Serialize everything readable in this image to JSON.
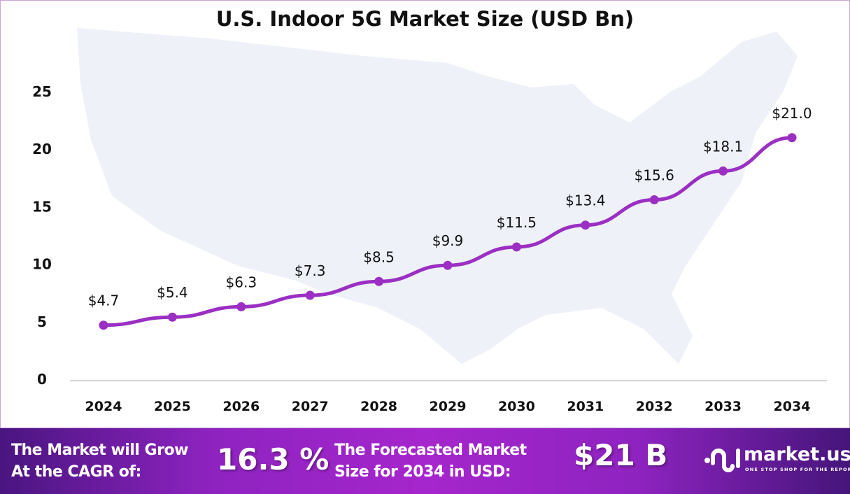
{
  "chart_data": {
    "type": "line",
    "title": "U.S. Indoor 5G Market Size (USD Bn)",
    "xlabel": "",
    "ylabel": "",
    "categories": [
      "2024",
      "2025",
      "2026",
      "2027",
      "2028",
      "2029",
      "2030",
      "2031",
      "2032",
      "2033",
      "2034"
    ],
    "values": [
      4.7,
      5.4,
      6.3,
      7.3,
      8.5,
      9.9,
      11.5,
      13.4,
      15.6,
      18.1,
      21.0
    ],
    "data_labels": [
      "$4.7",
      "$5.4",
      "$6.3",
      "$7.3",
      "$8.5",
      "$9.9",
      "$11.5",
      "$13.4",
      "$15.6",
      "$18.1",
      "$21.0"
    ],
    "yticks": [
      "0",
      "5",
      "10",
      "15",
      "20",
      "25"
    ],
    "ylim": [
      0,
      25
    ],
    "grid": false,
    "legend": "none",
    "line_color": "#9b2fc3",
    "background": "map of the United States"
  },
  "banner": {
    "cagr_label_line1": "The Market will Grow",
    "cagr_label_line2": "At the CAGR of:",
    "cagr_value": "16.3 %",
    "forecast_label_line1": "The Forecasted Market",
    "forecast_label_line2": "Size for 2034 in USD:",
    "forecast_value": "$21 B",
    "logo_text": "market.us",
    "logo_tagline": "ONE STOP SHOP FOR THE REPORTS"
  }
}
